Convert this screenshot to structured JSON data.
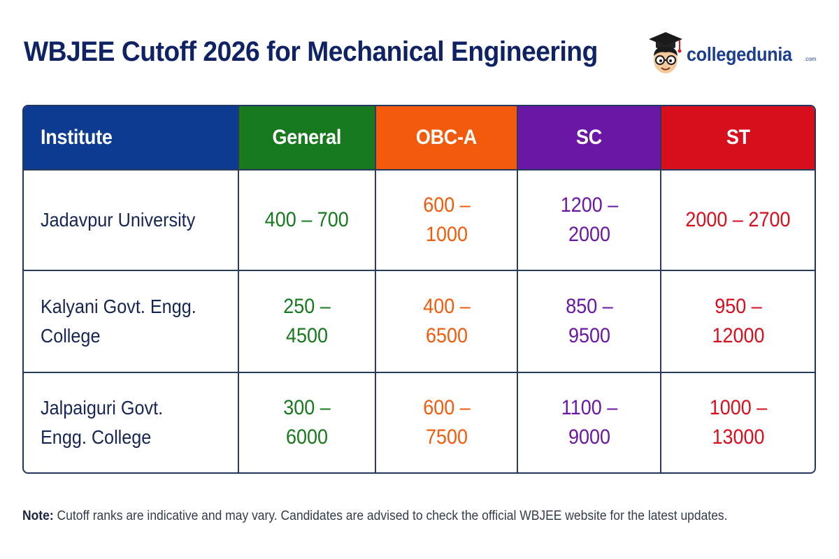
{
  "title": "WBJEE Cutoff 2026 for Mechanical Engineering",
  "brand": {
    "name": "collegedunia",
    "tld": ".com",
    "icon": "mascot-graduate-icon"
  },
  "colors": {
    "institute_header": "#0d3b91",
    "general": "#17791d",
    "obc_a": "#f25b0c",
    "sc": "#6a17a6",
    "st": "#d70f1d"
  },
  "table": {
    "headers": [
      "Institute",
      "General",
      "OBC-A",
      "SC",
      "ST"
    ],
    "rows": [
      {
        "institute": "Jadavpur University",
        "general": "400 – 700",
        "obc_a": "600 – 1000",
        "sc": "1200 – 2000",
        "st": "2000 – 2700"
      },
      {
        "institute": "Kalyani Govt. Engg. College",
        "general": "250 – 4500",
        "obc_a": "400 – 6500",
        "sc": "850 – 9500",
        "st": "950 – 12000"
      },
      {
        "institute": "Jalpaiguri Govt. Engg. College",
        "general": "300 – 6000",
        "obc_a": "600 – 7500",
        "sc": "1100 – 9000",
        "st": "1000 – 13000"
      }
    ]
  },
  "note": {
    "label": "Note:",
    "text": "Cutoff ranks are indicative and may vary. Candidates are advised to check the official WBJEE website for the latest updates."
  }
}
